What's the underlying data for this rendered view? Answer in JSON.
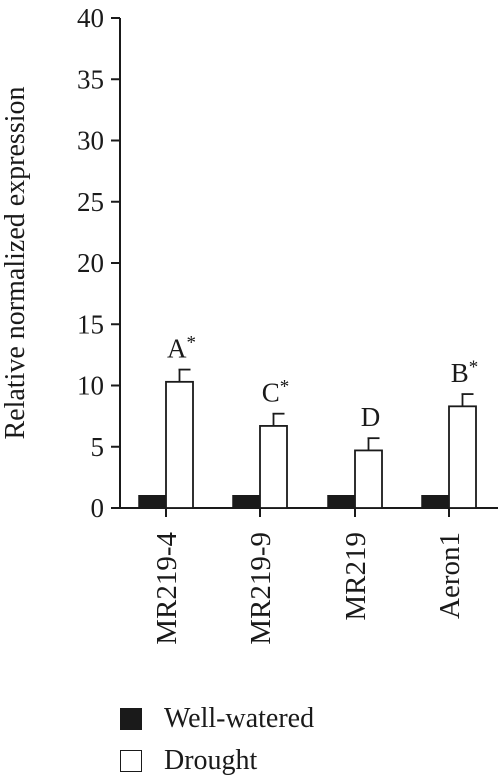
{
  "chart_data": {
    "type": "bar",
    "title": "",
    "xlabel": "",
    "ylabel": "Relative normalized expression",
    "ylim": [
      0,
      40
    ],
    "yticks": [
      "0",
      "5",
      "10",
      "15",
      "20",
      "25",
      "30",
      "35",
      "40"
    ],
    "categories": [
      "MR219-4",
      "MR219-9",
      "MR219",
      "Aeron1"
    ],
    "series": [
      {
        "name": "Well-watered",
        "values": [
          1,
          1,
          1,
          1
        ],
        "errors": [
          0,
          0,
          0,
          0
        ],
        "color": "#1a1a1a"
      },
      {
        "name": "Drought",
        "values": [
          10.3,
          6.7,
          4.7,
          8.3
        ],
        "errors": [
          1.0,
          1.0,
          1.0,
          1.0
        ],
        "color": "#ffffff"
      }
    ],
    "annotations": [
      "A*",
      "C*",
      "D",
      "B*"
    ],
    "legend_position": "bottom-left",
    "grid": false
  }
}
